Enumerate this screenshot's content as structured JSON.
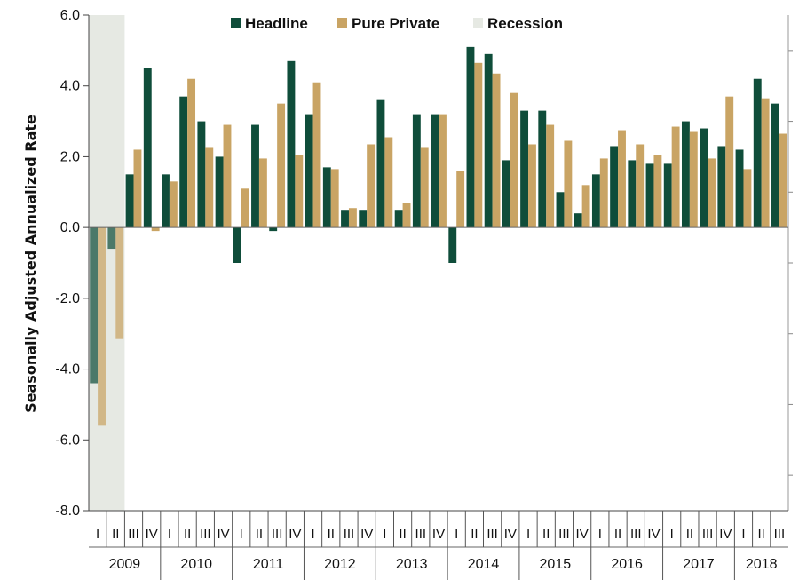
{
  "chart_data": {
    "type": "bar",
    "ylabel": "Seasonally Adjusted Annualized Rate",
    "xlabel": "",
    "ylim": [
      -8.0,
      6.0
    ],
    "yticks": [
      "6.0",
      "4.0",
      "2.0",
      "0.0",
      "-2.0",
      "-4.0",
      "-6.0",
      "-8.0"
    ],
    "quarters": [
      "I",
      "II",
      "III",
      "IV",
      "I",
      "II",
      "III",
      "IV",
      "I",
      "II",
      "III",
      "IV",
      "I",
      "II",
      "III",
      "IV",
      "I",
      "II",
      "III",
      "IV",
      "I",
      "II",
      "III",
      "IV",
      "I",
      "II",
      "III",
      "IV",
      "I",
      "II",
      "III",
      "IV",
      "I",
      "II",
      "III",
      "IV",
      "I",
      "II",
      "III"
    ],
    "years": [
      {
        "label": "2009",
        "quarters": 4
      },
      {
        "label": "2010",
        "quarters": 4
      },
      {
        "label": "2011",
        "quarters": 4
      },
      {
        "label": "2012",
        "quarters": 4
      },
      {
        "label": "2013",
        "quarters": 4
      },
      {
        "label": "2014",
        "quarters": 4
      },
      {
        "label": "2015",
        "quarters": 4
      },
      {
        "label": "2016",
        "quarters": 4
      },
      {
        "label": "2017",
        "quarters": 4
      },
      {
        "label": "2018",
        "quarters": 3
      }
    ],
    "series": [
      {
        "name": "Headline",
        "color": "#0f4d3a",
        "values": [
          -4.4,
          -0.6,
          1.5,
          4.5,
          1.5,
          3.7,
          3.0,
          2.0,
          -1.0,
          2.9,
          -0.1,
          4.7,
          3.2,
          1.7,
          0.5,
          0.5,
          3.6,
          0.5,
          3.2,
          3.2,
          -1.0,
          5.1,
          4.9,
          1.9,
          3.3,
          3.3,
          1.0,
          0.4,
          1.5,
          2.3,
          1.9,
          1.8,
          1.8,
          3.0,
          2.8,
          2.3,
          2.2,
          4.2,
          3.5
        ]
      },
      {
        "name": "Pure Private",
        "color": "#c9a464",
        "values": [
          -5.6,
          -3.15,
          2.2,
          -0.1,
          1.3,
          4.2,
          2.25,
          2.9,
          1.1,
          1.95,
          3.5,
          2.05,
          4.1,
          1.65,
          0.55,
          2.35,
          2.55,
          0.7,
          2.25,
          3.2,
          1.6,
          4.65,
          4.35,
          3.8,
          2.35,
          2.9,
          2.45,
          1.2,
          1.95,
          2.75,
          2.35,
          2.05,
          2.85,
          2.7,
          1.95,
          3.7,
          1.65,
          3.65,
          2.65
        ]
      },
      {
        "name": "Recession",
        "color": "#e6e9e3",
        "span_quarters": [
          "2009 I",
          "2009 II"
        ]
      }
    ],
    "legend": {
      "position": "top"
    },
    "grid": false
  }
}
